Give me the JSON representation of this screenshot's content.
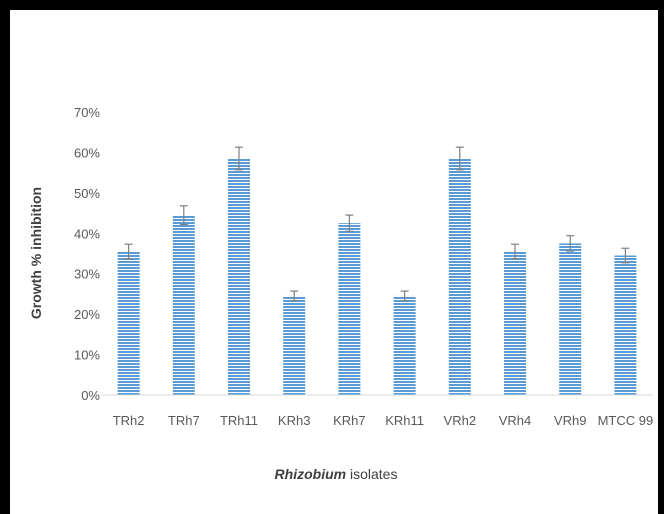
{
  "chart_data": {
    "type": "bar",
    "categories": [
      "TRh2",
      "TRh7",
      "TRh11",
      "KRh3",
      "KRh7",
      "KRh11",
      "VRh2",
      "VRh4",
      "VRh9",
      "MTCC 99"
    ],
    "values": [
      35.5,
      44.5,
      58.5,
      24.5,
      42.5,
      24.5,
      58.5,
      35.5,
      37.5,
      34.5
    ],
    "errors": [
      1.8,
      2.3,
      2.8,
      1.2,
      2.0,
      1.2,
      2.8,
      1.8,
      1.9,
      1.8
    ],
    "ylabel": "Growth % inhibition",
    "xlabel_italic": "Rhizobium",
    "xlabel_rest": " isolates",
    "yticks": [
      "0%",
      "10%",
      "20%",
      "30%",
      "40%",
      "50%",
      "60%",
      "70%"
    ],
    "ylim": [
      0,
      70
    ],
    "grid": false,
    "colors": {
      "bar_stripe": "#5b9bd5",
      "bar_gap": "#ffffff",
      "error_bar": "#7f7f7f",
      "axis_line": "#d9d9d9",
      "frame": "#000000"
    }
  }
}
